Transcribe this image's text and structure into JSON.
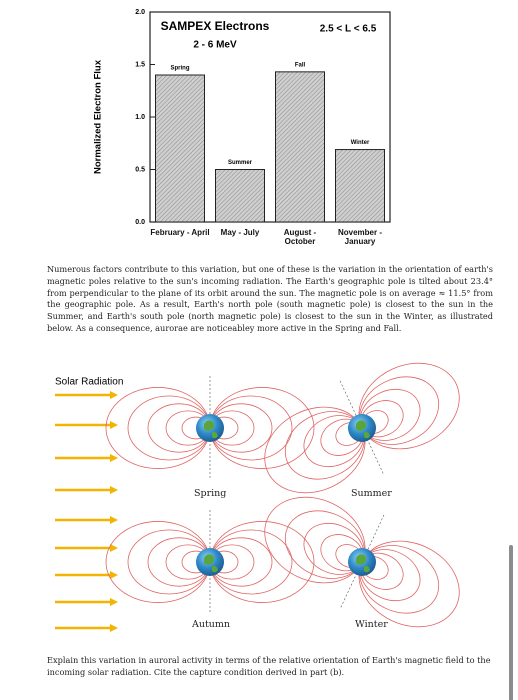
{
  "chart_data": {
    "type": "bar",
    "title": "SAMPEX Electrons",
    "subtitle": "2 - 6 MeV",
    "annotation": "2.5 < L < 6.5",
    "ylabel": "Normalized Electron Flux",
    "categories": [
      "February - April",
      "May - July",
      "August - October",
      "November - January"
    ],
    "bar_labels": [
      "Spring",
      "Summer",
      "Fall",
      "Winter"
    ],
    "values": [
      1.4,
      0.5,
      1.43,
      0.69
    ],
    "color": "#cfcfcf",
    "ylim": [
      0,
      2
    ],
    "yticks": [
      {
        "value": 0,
        "label": "0.0"
      },
      0.5,
      {
        "value": 1,
        "label": "1.0"
      },
      1.5,
      {
        "value": 2,
        "label": "2.0"
      }
    ]
  },
  "paragraph": "Numerous factors contribute to this variation, but one of these is the variation in the orientation of earth's magnetic poles relative to the sun's incoming radiation. The Earth's geographic pole is tilted about 23.4° from perpendicular to the plane of its orbit around the sun. The magnetic pole is on average ≈ 11.5° from the geographic pole. As a result, Earth's north pole (south magnetic pole) is closest to the sun in the Summer, and Earth's south pole (north magnetic pole) is closest to the sun in the Winter, as illustrated below. As a consequence, aurorae are noticeabley more active in the Spring and Fall.",
  "diagram": {
    "radiation_label": "Solar Radiation",
    "panels": [
      "Spring",
      "Summer",
      "Autumn",
      "Winter"
    ]
  },
  "question": "Explain this variation in auroral activity in terms of the relative orientation of Earth's magnetic field to the incoming solar radiation. Cite the capture condition derived in part (b)."
}
